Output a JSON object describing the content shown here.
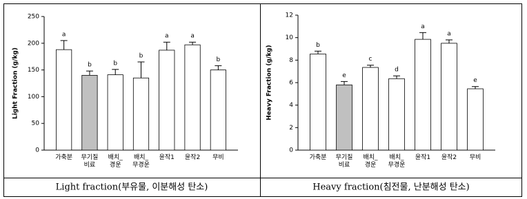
{
  "chart_data": [
    {
      "type": "bar",
      "y_label": "Light Fraction (g/kg)",
      "categories": [
        "가축분",
        "무기질\n비료",
        "배치_\n경운",
        "배치_\n무경운",
        "윤작1",
        "윤작2",
        "무비"
      ],
      "values": [
        188,
        140,
        141,
        135,
        187,
        197,
        150
      ],
      "errors": [
        17,
        8,
        10,
        30,
        15,
        5,
        8
      ],
      "annotations": [
        "a",
        "b",
        "b",
        "b",
        "a",
        "a",
        "b"
      ],
      "colors": [
        "#ffffff",
        "#c0c0c0",
        "#ffffff",
        "#ffffff",
        "#ffffff",
        "#ffffff",
        "#ffffff"
      ],
      "ylim": [
        0,
        250
      ],
      "yticks": [
        0,
        50,
        100,
        150,
        200,
        250
      ],
      "caption": "Light fraction(부유물, 이분해성 탄소)"
    },
    {
      "type": "bar",
      "y_label": "Heavy Fraction (g/kg)",
      "categories": [
        "가축분",
        "무기질\n비료",
        "배치_\n경운",
        "배치_\n무경운",
        "윤작1",
        "윤작2",
        "무비"
      ],
      "values": [
        8.55,
        5.8,
        7.35,
        6.35,
        9.85,
        9.5,
        5.45
      ],
      "errors": [
        0.25,
        0.3,
        0.2,
        0.25,
        0.6,
        0.3,
        0.2
      ],
      "annotations": [
        "b",
        "e",
        "c",
        "d",
        "a",
        "a",
        "e"
      ],
      "colors": [
        "#ffffff",
        "#c0c0c0",
        "#ffffff",
        "#ffffff",
        "#ffffff",
        "#ffffff",
        "#ffffff"
      ],
      "ylim": [
        0,
        12
      ],
      "yticks": [
        0,
        2,
        4,
        6,
        8,
        10,
        12
      ],
      "caption": "Heavy fraction(침전물, 난분해성 탄소)"
    }
  ]
}
